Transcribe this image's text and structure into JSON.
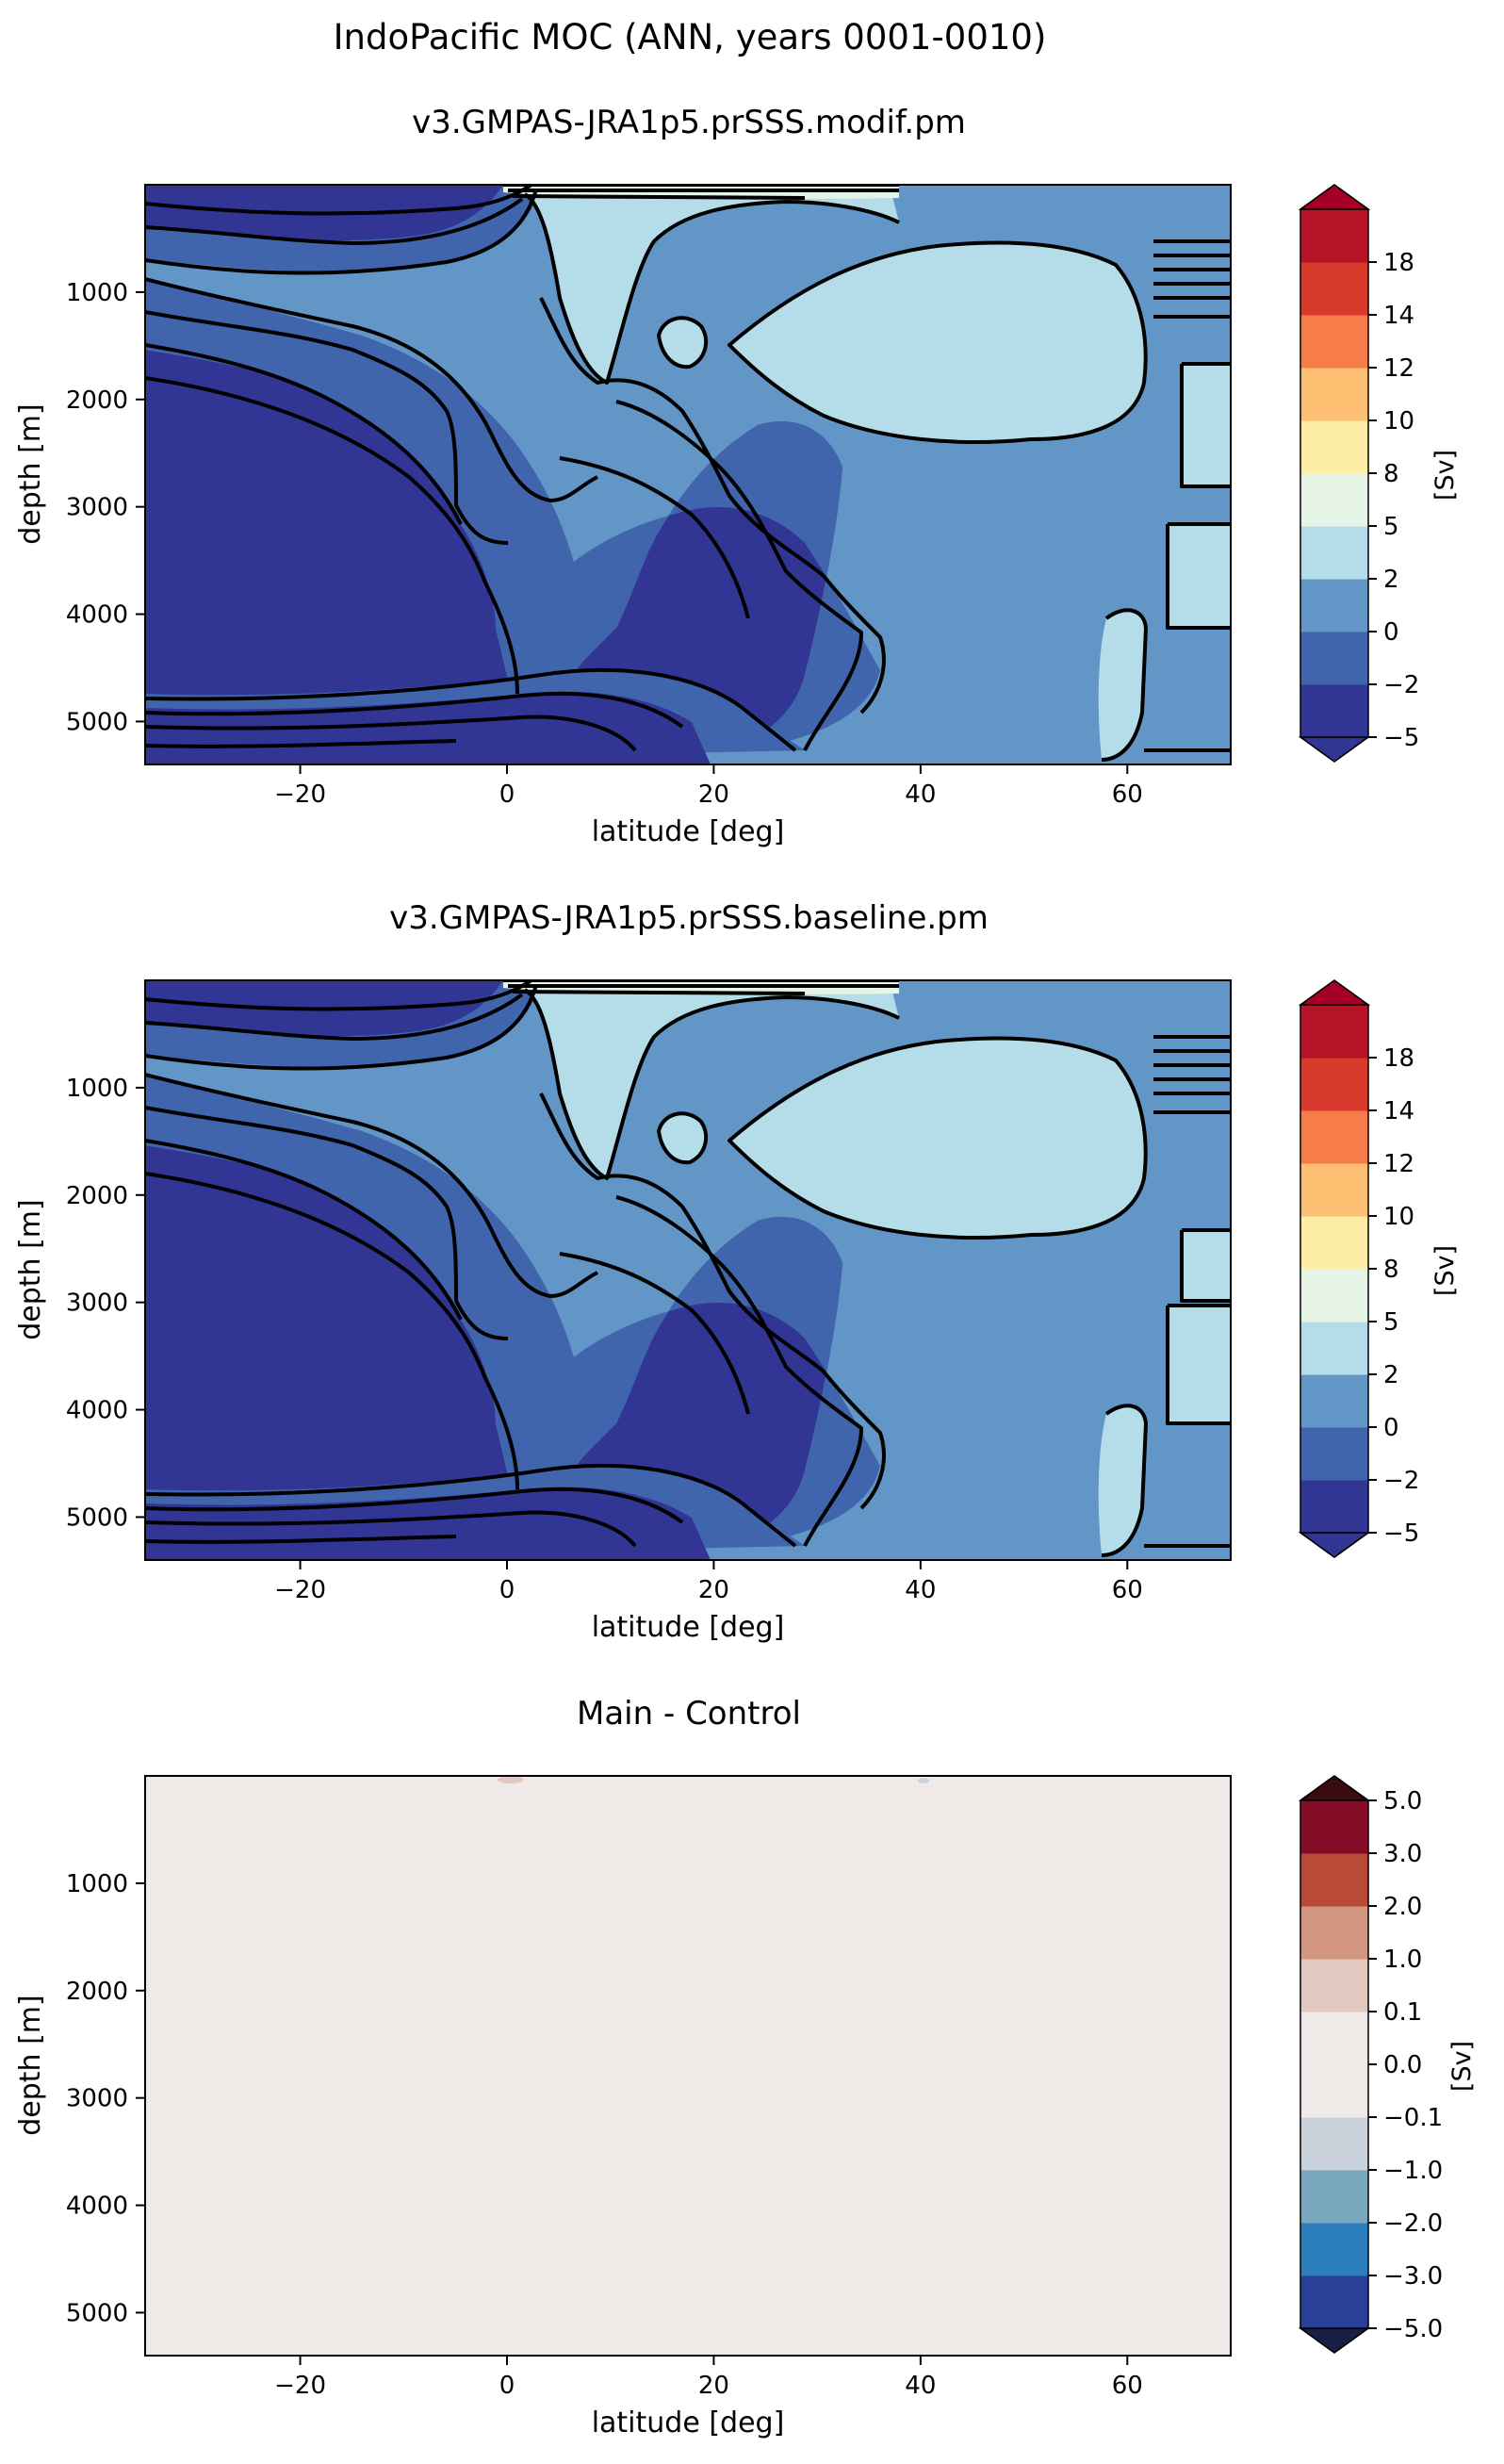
{
  "figure": {
    "suptitle": "IndoPacific MOC (ANN, years 0001-0010)"
  },
  "chart_data": [
    {
      "type": "contourf",
      "title": "v3.GMPAS-JRA1p5.prSSS.modif.pm",
      "xlabel": "latitude [deg]",
      "ylabel": "depth [m]",
      "xlim": [
        -35,
        70
      ],
      "ylim": [
        5400,
        0
      ],
      "x_ticks": [
        -20,
        0,
        20,
        40,
        60
      ],
      "x_tick_labels": [
        "−20",
        "0",
        "20",
        "40",
        "60"
      ],
      "y_ticks": [
        1000,
        2000,
        3000,
        4000,
        5000
      ],
      "y_tick_labels": [
        "1000",
        "2000",
        "3000",
        "4000",
        "5000"
      ],
      "colorbar": {
        "label": "[Sv]",
        "levels": [
          -5,
          -2,
          0,
          2,
          5,
          8,
          10,
          12,
          14,
          18
        ],
        "tick_labels": [
          "−5",
          "−2",
          "0",
          "2",
          "5",
          "8",
          "10",
          "12",
          "14",
          "18"
        ],
        "colors": [
          "#313695",
          "#4065ad",
          "#6296c6",
          "#b4dde9",
          "#e6f4e6",
          "#feeea5",
          "#fdbf72",
          "#f67c4a",
          "#d83a2c",
          "#b51427"
        ],
        "extend_low_color": "#313695",
        "extend_high_color": "#a50026"
      }
    },
    {
      "type": "contourf",
      "title": "v3.GMPAS-JRA1p5.prSSS.baseline.pm",
      "xlabel": "latitude [deg]",
      "ylabel": "depth [m]",
      "xlim": [
        -35,
        70
      ],
      "ylim": [
        5400,
        0
      ],
      "x_ticks": [
        -20,
        0,
        20,
        40,
        60
      ],
      "x_tick_labels": [
        "−20",
        "0",
        "20",
        "40",
        "60"
      ],
      "y_ticks": [
        1000,
        2000,
        3000,
        4000,
        5000
      ],
      "y_tick_labels": [
        "1000",
        "2000",
        "3000",
        "4000",
        "5000"
      ],
      "colorbar": {
        "label": "[Sv]",
        "levels": [
          -5,
          -2,
          0,
          2,
          5,
          8,
          10,
          12,
          14,
          18
        ],
        "tick_labels": [
          "−5",
          "−2",
          "0",
          "2",
          "5",
          "8",
          "10",
          "12",
          "14",
          "18"
        ],
        "colors": [
          "#313695",
          "#4065ad",
          "#6296c6",
          "#b4dde9",
          "#e6f4e6",
          "#feeea5",
          "#fdbf72",
          "#f67c4a",
          "#d83a2c",
          "#b51427"
        ],
        "extend_low_color": "#313695",
        "extend_high_color": "#a50026"
      }
    },
    {
      "type": "contourf",
      "title": "Main - Control",
      "xlabel": "latitude [deg]",
      "ylabel": "depth [m]",
      "xlim": [
        -35,
        70
      ],
      "ylim": [
        5400,
        0
      ],
      "x_ticks": [
        -20,
        0,
        20,
        40,
        60
      ],
      "x_tick_labels": [
        "−20",
        "0",
        "20",
        "40",
        "60"
      ],
      "y_ticks": [
        1000,
        2000,
        3000,
        4000,
        5000
      ],
      "y_tick_labels": [
        "1000",
        "2000",
        "3000",
        "4000",
        "5000"
      ],
      "field_value": 0.0,
      "field_color": "#efe9e8",
      "colorbar": {
        "label": "[Sv]",
        "levels": [
          -5.0,
          -3.0,
          -2.0,
          -1.0,
          -0.1,
          0.0,
          0.1,
          1.0,
          2.0,
          3.0,
          5.0
        ],
        "tick_labels": [
          "−5.0",
          "−3.0",
          "−2.0",
          "−1.0",
          "−0.1",
          "0.0",
          "0.1",
          "1.0",
          "2.0",
          "3.0",
          "5.0"
        ],
        "colors": [
          "#2a3f98",
          "#2a7fbc",
          "#79a8be",
          "#c9d2da",
          "#efe9e8",
          "#efe9e8",
          "#e3c8c0",
          "#d39681",
          "#b84a36",
          "#840c26"
        ],
        "extend_low_color": "#1a1f45",
        "extend_high_color": "#3a0c12"
      }
    }
  ]
}
